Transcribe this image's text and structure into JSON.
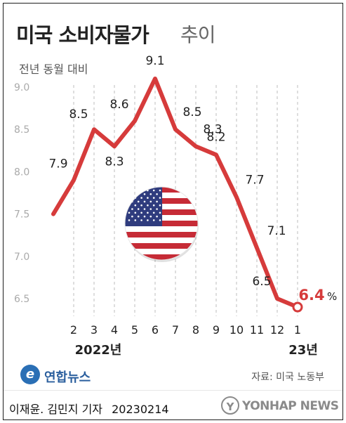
{
  "header": {
    "title_main": "미국 소비자물가",
    "title_sub": "추이",
    "subtitle": "전년 동월 대비"
  },
  "chart_data": {
    "type": "line",
    "title": "미국 소비자물가 추이",
    "subtitle": "전년 동월 대비",
    "x_tick_labels": [
      "",
      "2",
      "3",
      "4",
      "5",
      "6",
      "7",
      "8",
      "9",
      "10",
      "11",
      "12",
      "1"
    ],
    "year_labels": {
      "2022": "2022년",
      "2023": "23년"
    },
    "series": [
      {
        "values": [
          7.5,
          7.9,
          8.5,
          8.3,
          8.6,
          9.1,
          8.5,
          8.3,
          8.2,
          7.7,
          7.1,
          6.5,
          6.4
        ],
        "data_labels": [
          "",
          "7.9",
          "8.5",
          "8.3",
          "8.6",
          "9.1",
          "8.5",
          "8.3",
          "8.2",
          "7.7",
          "7.1",
          "6.5",
          "6.4"
        ],
        "last_label_unit": "%"
      }
    ],
    "y_ticks": [
      "9.0",
      "8.5",
      "8.0",
      "7.5",
      "7.0",
      "6.5"
    ],
    "ylim": [
      6.5,
      9.0
    ],
    "grid": "vertical dashed",
    "line_color": "#d63b3b",
    "highlight_color": "#d63b3b",
    "annotation_icon": "us-flag"
  },
  "logo": {
    "mark": "e",
    "text": "연합뉴스"
  },
  "source": "자료: 미국 노동부",
  "footer": {
    "reporter": "이재윤. 김민지 기자",
    "date": "20230214",
    "watermark": "YONHAP NEWS",
    "watermark_mark": "Y"
  }
}
